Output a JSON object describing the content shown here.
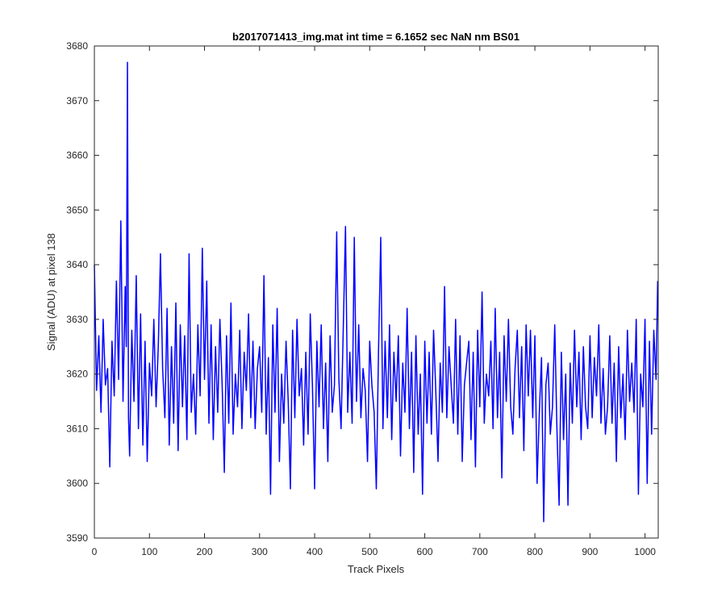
{
  "chart_data": {
    "type": "line",
    "title": "b2017071413_img.mat int time = 6.1652 sec  NaN nm BS01",
    "xlabel": "Track Pixels",
    "ylabel": "Signal (ADU) at pixel 138",
    "xlim": [
      0,
      1024
    ],
    "ylim": [
      3590,
      3680
    ],
    "xticks": [
      0,
      100,
      200,
      300,
      400,
      500,
      600,
      700,
      800,
      900,
      1000
    ],
    "yticks": [
      3590,
      3600,
      3610,
      3620,
      3630,
      3640,
      3650,
      3660,
      3670,
      3680
    ],
    "grid": false,
    "legend": "none",
    "line_color": "#0000ff",
    "series": [
      {
        "x": [
          0,
          4,
          8,
          12,
          16,
          20,
          24,
          28,
          32,
          36,
          40,
          44,
          48,
          52,
          56,
          58,
          60,
          62,
          64,
          68,
          72,
          76,
          80,
          84,
          88,
          92,
          96,
          100,
          104,
          108,
          112,
          116,
          120,
          124,
          128,
          132,
          136,
          140,
          144,
          148,
          152,
          156,
          160,
          164,
          168,
          172,
          176,
          180,
          184,
          188,
          192,
          196,
          200,
          204,
          208,
          212,
          216,
          220,
          224,
          228,
          232,
          236,
          240,
          244,
          248,
          252,
          256,
          260,
          264,
          268,
          272,
          276,
          280,
          284,
          288,
          292,
          296,
          300,
          304,
          308,
          312,
          316,
          320,
          324,
          328,
          332,
          336,
          340,
          344,
          348,
          352,
          356,
          360,
          364,
          368,
          372,
          376,
          380,
          384,
          388,
          392,
          396,
          400,
          404,
          408,
          412,
          416,
          420,
          424,
          428,
          432,
          436,
          440,
          444,
          448,
          452,
          456,
          460,
          464,
          468,
          472,
          476,
          480,
          484,
          488,
          492,
          496,
          500,
          504,
          508,
          512,
          516,
          520,
          524,
          528,
          532,
          536,
          540,
          544,
          548,
          552,
          556,
          560,
          564,
          568,
          572,
          576,
          580,
          584,
          588,
          592,
          596,
          600,
          604,
          608,
          612,
          616,
          620,
          624,
          628,
          632,
          636,
          640,
          644,
          648,
          652,
          656,
          660,
          664,
          668,
          672,
          676,
          680,
          684,
          688,
          692,
          696,
          700,
          704,
          708,
          712,
          716,
          720,
          724,
          728,
          732,
          736,
          740,
          744,
          748,
          752,
          756,
          760,
          764,
          768,
          772,
          776,
          780,
          784,
          788,
          792,
          796,
          800,
          804,
          808,
          812,
          816,
          820,
          824,
          828,
          832,
          836,
          840,
          844,
          848,
          852,
          856,
          860,
          864,
          868,
          872,
          876,
          880,
          884,
          888,
          892,
          896,
          900,
          904,
          908,
          912,
          916,
          920,
          924,
          928,
          932,
          936,
          940,
          944,
          948,
          952,
          956,
          960,
          964,
          968,
          972,
          976,
          980,
          984,
          988,
          992,
          996,
          1000,
          1004,
          1008,
          1012,
          1016,
          1020,
          1023
        ],
        "y": [
          3640,
          3617,
          3627,
          3613,
          3630,
          3618,
          3621,
          3603,
          3626,
          3616,
          3637,
          3619,
          3648,
          3615,
          3636,
          3625,
          3677,
          3612,
          3605,
          3628,
          3615,
          3638,
          3610,
          3631,
          3607,
          3626,
          3604,
          3622,
          3616,
          3630,
          3614,
          3625,
          3642,
          3621,
          3612,
          3632,
          3607,
          3625,
          3611,
          3633,
          3606,
          3629,
          3614,
          3627,
          3608,
          3642,
          3613,
          3620,
          3609,
          3629,
          3616,
          3643,
          3619,
          3637,
          3611,
          3629,
          3608,
          3625,
          3613,
          3630,
          3618,
          3602,
          3627,
          3611,
          3633,
          3609,
          3620,
          3614,
          3628,
          3610,
          3624,
          3617,
          3631,
          3612,
          3626,
          3610,
          3621,
          3625,
          3613,
          3638,
          3609,
          3623,
          3598,
          3629,
          3613,
          3632,
          3604,
          3620,
          3611,
          3626,
          3615,
          3599,
          3628,
          3612,
          3630,
          3616,
          3621,
          3607,
          3624,
          3609,
          3631,
          3618,
          3599,
          3626,
          3614,
          3629,
          3610,
          3622,
          3604,
          3627,
          3613,
          3618,
          3646,
          3619,
          3610,
          3628,
          3647,
          3613,
          3624,
          3611,
          3645,
          3615,
          3629,
          3612,
          3621,
          3617,
          3604,
          3626,
          3618,
          3613,
          3599,
          3624,
          3645,
          3610,
          3626,
          3612,
          3629,
          3608,
          3624,
          3615,
          3627,
          3605,
          3622,
          3613,
          3632,
          3610,
          3624,
          3602,
          3627,
          3609,
          3620,
          3598,
          3626,
          3611,
          3624,
          3609,
          3628,
          3617,
          3604,
          3622,
          3613,
          3636,
          3612,
          3625,
          3618,
          3611,
          3630,
          3609,
          3627,
          3604,
          3618,
          3622,
          3626,
          3608,
          3624,
          3603,
          3628,
          3614,
          3635,
          3611,
          3620,
          3616,
          3626,
          3610,
          3632,
          3612,
          3624,
          3601,
          3627,
          3615,
          3630,
          3614,
          3609,
          3621,
          3628,
          3612,
          3625,
          3606,
          3629,
          3616,
          3628,
          3612,
          3627,
          3600,
          3613,
          3623,
          3593,
          3618,
          3622,
          3609,
          3614,
          3629,
          3610,
          3596,
          3624,
          3608,
          3620,
          3596,
          3622,
          3611,
          3628,
          3614,
          3624,
          3608,
          3625,
          3614,
          3610,
          3627,
          3612,
          3623,
          3616,
          3629,
          3611,
          3621,
          3609,
          3614,
          3627,
          3611,
          3622,
          3604,
          3625,
          3612,
          3620,
          3608,
          3628,
          3615,
          3622,
          3613,
          3630,
          3598,
          3620,
          3614,
          3630,
          3600,
          3626,
          3609,
          3628,
          3619,
          3637
        ]
      }
    ]
  }
}
